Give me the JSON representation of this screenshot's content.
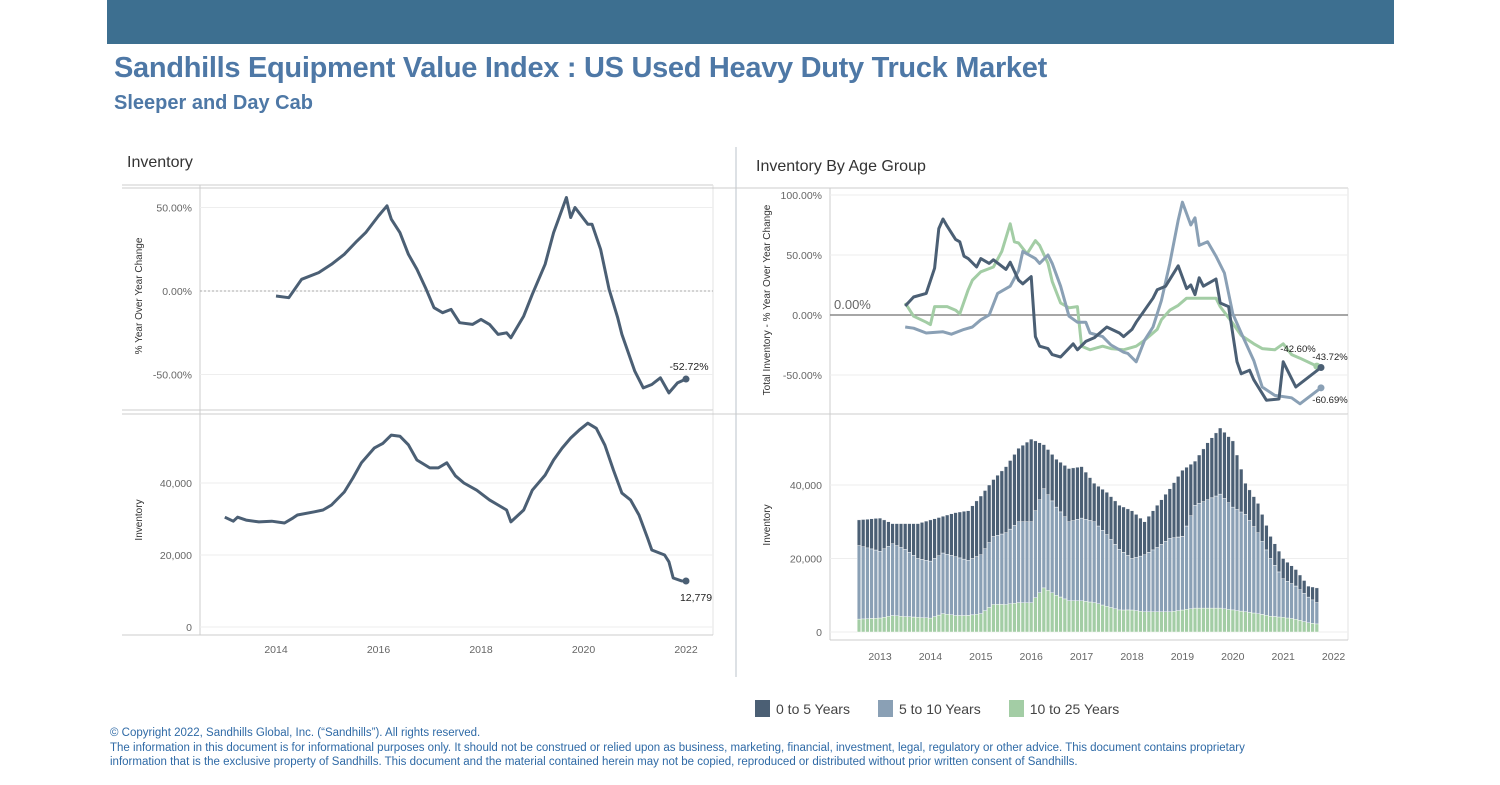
{
  "header": {
    "title": "Sandhills Equipment Value Index : US Used Heavy Duty Truck Market",
    "subtitle": "Sleeper and Day Cab",
    "banner_color": "#3d6f90",
    "title_color": "#4e78a6"
  },
  "legend": {
    "items": [
      {
        "label": "0 to 5 Years",
        "color": "#4b5f74"
      },
      {
        "label": "5 to 10 Years",
        "color": "#8aa0b5"
      },
      {
        "label": "10 to 25 Years",
        "color": "#a3cda5"
      }
    ]
  },
  "footer": {
    "copyright": "© Copyright 2022, Sandhills Global, Inc. (“Sandhills”). All rights reserved.",
    "disclaimer_1": "The information in this document is for informational purposes only.  It should not be construed or relied upon as business, marketing, financial, investment, legal, regulatory or other advice. This document contains proprietary",
    "disclaimer_2": "information that is the exclusive property of Sandhills. This document and the material contained herein may not be copied, reproduced or distributed without prior written consent of Sandhills."
  },
  "panels": {
    "left_title": "Inventory",
    "right_title": "Inventory By Age Group"
  },
  "chart_data": [
    {
      "type": "line",
      "panel": "Inventory",
      "ylabel": "% Year Over Year Change",
      "ylim": [
        -70,
        60
      ],
      "yticks": [
        "50.00%",
        "0.00%",
        "-50.00%"
      ],
      "ytick_values": [
        50,
        0,
        -50
      ],
      "xticks": [
        "2014",
        "2016",
        "2018",
        "2020",
        "2022"
      ],
      "grid": true,
      "color": "#4b5f74",
      "end_label": "-52.72%",
      "x": [
        "2014-01",
        "2014-04",
        "2014-07",
        "2014-11",
        "2015-02",
        "2015-05",
        "2015-08",
        "2015-10",
        "2016-01",
        "2016-03",
        "2016-04",
        "2016-06",
        "2016-08",
        "2016-10",
        "2016-12",
        "2017-02",
        "2017-04",
        "2017-06",
        "2017-08",
        "2017-11",
        "2018-01",
        "2018-03",
        "2018-05",
        "2018-07",
        "2018-08",
        "2018-11",
        "2019-01",
        "2019-04",
        "2019-06",
        "2019-07",
        "2019-09",
        "2019-10",
        "2019-11",
        "2020-02",
        "2020-03",
        "2020-05",
        "2020-07",
        "2020-09",
        "2020-10",
        "2021-01",
        "2021-03",
        "2021-05",
        "2021-07",
        "2021-09",
        "2021-11",
        "2022-01"
      ],
      "y": [
        -3,
        -4,
        7,
        11,
        16,
        22,
        30,
        35,
        45,
        51,
        43,
        35,
        22,
        13,
        2,
        -10,
        -13,
        -11,
        -19,
        -20,
        -17,
        -20,
        -26,
        -25,
        -28,
        -15,
        -2,
        16,
        35,
        42,
        56,
        44,
        50,
        40,
        40,
        25,
        1,
        -16,
        -26,
        -48,
        -58,
        -56,
        -52,
        -61,
        -55,
        -52.72
      ]
    },
    {
      "type": "line",
      "panel": "Inventory",
      "ylabel": "Inventory",
      "ylim": [
        0,
        60000
      ],
      "yticks": [
        "40,000",
        "20,000",
        "0"
      ],
      "ytick_values": [
        40000,
        20000,
        0
      ],
      "xticks": [
        "2014",
        "2016",
        "2018",
        "2020",
        "2022"
      ],
      "grid": true,
      "color": "#4b5f74",
      "end_label": "12,779",
      "x": [
        "2013-01",
        "2013-03",
        "2013-04",
        "2013-06",
        "2013-09",
        "2013-12",
        "2014-03",
        "2014-05",
        "2014-06",
        "2014-10",
        "2014-12",
        "2015-02",
        "2015-05",
        "2015-07",
        "2015-09",
        "2015-12",
        "2016-02",
        "2016-04",
        "2016-06",
        "2016-08",
        "2016-10",
        "2017-01",
        "2017-03",
        "2017-05",
        "2017-07",
        "2017-09",
        "2017-12",
        "2018-03",
        "2018-05",
        "2018-07",
        "2018-08",
        "2018-11",
        "2019-01",
        "2019-04",
        "2019-06",
        "2019-08",
        "2019-10",
        "2019-12",
        "2020-02",
        "2020-04",
        "2020-06",
        "2020-08",
        "2020-10",
        "2020-12",
        "2021-02",
        "2021-04",
        "2021-05",
        "2021-08",
        "2021-09",
        "2021-10",
        "2021-12",
        "2022-01"
      ],
      "y": [
        30500,
        29400,
        30500,
        29700,
        29200,
        29400,
        28900,
        30300,
        31100,
        32000,
        32500,
        33900,
        37500,
        41400,
        45600,
        49700,
        51000,
        53300,
        53000,
        50600,
        46400,
        44200,
        44200,
        45600,
        42000,
        40000,
        38000,
        35300,
        33900,
        32500,
        29200,
        32500,
        38000,
        42200,
        46400,
        49700,
        52500,
        54700,
        56600,
        55200,
        50500,
        43600,
        37200,
        35300,
        31100,
        24700,
        21400,
        20000,
        18100,
        13600,
        12800,
        12779
      ]
    },
    {
      "type": "line",
      "panel": "Inventory By Age Group",
      "ylabel": "Total Inventory - % Year Over Year Change",
      "ylim": [
        -75,
        100
      ],
      "yticks": [
        "100.00%",
        "50.00%",
        "0.00%",
        "-50.00%"
      ],
      "ytick_values": [
        100,
        50,
        0,
        -50
      ],
      "reference_line_label": "0.00%",
      "grid": true,
      "series": [
        {
          "name": "0 to 5 Years",
          "color": "#4b5f74",
          "end_label": "-43.72%",
          "x": [
            "2013-07",
            "2013-09",
            "2013-12",
            "2014-02",
            "2014-03",
            "2014-04",
            "2014-05",
            "2014-07",
            "2014-08",
            "2014-09",
            "2014-10",
            "2014-12",
            "2015-01",
            "2015-03",
            "2015-04",
            "2015-07",
            "2015-08",
            "2015-10",
            "2015-11",
            "2016-01",
            "2016-02",
            "2016-03",
            "2016-05",
            "2016-06",
            "2016-08",
            "2016-11",
            "2016-12",
            "2017-02",
            "2017-04",
            "2017-07",
            "2017-10",
            "2017-11",
            "2018-01",
            "2018-02",
            "2018-04",
            "2018-06",
            "2018-07",
            "2018-09",
            "2018-12",
            "2019-02",
            "2019-03",
            "2019-04",
            "2019-05",
            "2019-06",
            "2019-09",
            "2019-10",
            "2019-12",
            "2020-02",
            "2020-03",
            "2020-05",
            "2020-06",
            "2020-09",
            "2020-12",
            "2021-01",
            "2021-04",
            "2021-10"
          ],
          "y": [
            7.5,
            15,
            18,
            39,
            72,
            80,
            74,
            63,
            61,
            49,
            47,
            40,
            47,
            43,
            46,
            38,
            44,
            29,
            26,
            32,
            -18,
            -26,
            -28,
            -33,
            -35,
            -24,
            -29,
            -22,
            -19,
            -10,
            -15,
            -18,
            -12,
            -6,
            4,
            14,
            21,
            24,
            41,
            22,
            25,
            17,
            31,
            24,
            30,
            10,
            7,
            -39,
            -49,
            -46,
            -54,
            -71,
            -70,
            -39,
            -60,
            -43.72
          ]
        },
        {
          "name": "5 to 10 Years",
          "color": "#8aa0b5",
          "end_label": "-60.69%",
          "x": [
            "2013-07",
            "2013-09",
            "2013-12",
            "2014-04",
            "2014-06",
            "2014-09",
            "2014-11",
            "2015-01",
            "2015-03",
            "2015-05",
            "2015-08",
            "2015-10",
            "2015-11",
            "2016-02",
            "2016-03",
            "2016-05",
            "2016-06",
            "2016-08",
            "2016-10",
            "2016-12",
            "2017-02",
            "2017-03",
            "2017-06",
            "2017-08",
            "2017-11",
            "2017-12",
            "2018-02",
            "2018-04",
            "2018-06",
            "2018-08",
            "2018-10",
            "2018-12",
            "2019-01",
            "2019-03",
            "2019-04",
            "2019-05",
            "2019-07",
            "2019-09",
            "2019-11",
            "2020-01",
            "2020-03",
            "2020-06",
            "2020-08",
            "2020-11",
            "2021-03",
            "2021-05",
            "2021-10"
          ],
          "y": [
            -10,
            -11,
            -15,
            -14,
            -16,
            -12,
            -10,
            -4,
            0,
            18,
            24,
            37,
            53,
            47,
            43,
            50,
            43,
            24,
            -1,
            -6,
            -6,
            -15,
            -18,
            -25,
            -31,
            -32,
            -39,
            -21,
            -10,
            12,
            43,
            79,
            94,
            75,
            81,
            58,
            61,
            49,
            35,
            1,
            -15,
            -38,
            -60,
            -67,
            -69,
            -74,
            -60.69
          ]
        },
        {
          "name": "10 to 25 Years",
          "color": "#a3cda5",
          "end_label": "-42.60%",
          "x": [
            "2013-07",
            "2013-09",
            "2013-12",
            "2014-01",
            "2014-02",
            "2014-05",
            "2014-07",
            "2014-08",
            "2014-10",
            "2014-11",
            "2015-01",
            "2015-04",
            "2015-06",
            "2015-08",
            "2015-09",
            "2015-10",
            "2015-12",
            "2016-02",
            "2016-03",
            "2016-05",
            "2016-06",
            "2016-08",
            "2016-10",
            "2016-12",
            "2017-01",
            "2017-03",
            "2017-06",
            "2017-08",
            "2017-11",
            "2018-02",
            "2018-04",
            "2018-07",
            "2018-08",
            "2018-10",
            "2018-12",
            "2019-02",
            "2019-05",
            "2019-09",
            "2019-10",
            "2020-01",
            "2020-03",
            "2020-06",
            "2020-08",
            "2020-11",
            "2021-01",
            "2021-03",
            "2021-05",
            "2021-09"
          ],
          "y": [
            10,
            -1,
            -6,
            -8,
            7,
            7,
            4,
            1,
            21,
            29,
            36,
            40,
            53,
            76,
            61,
            60,
            51,
            62,
            58,
            43,
            28,
            10,
            6,
            7,
            -26,
            -29,
            -26,
            -28,
            -29,
            -26,
            -21,
            -12,
            -4,
            4,
            8,
            14,
            14,
            14,
            7,
            -7,
            -17,
            -24,
            -28,
            -29,
            -24,
            -33,
            -36,
            -42.6
          ]
        }
      ]
    },
    {
      "type": "bar",
      "stacked": true,
      "panel": "Inventory By Age Group",
      "ylabel": "Inventory",
      "ylim": [
        0,
        60000
      ],
      "yticks": [
        "40,000",
        "20,000",
        "0"
      ],
      "ytick_values": [
        40000,
        20000,
        0
      ],
      "xticks": [
        "2013",
        "2014",
        "2015",
        "2016",
        "2017",
        "2018",
        "2019",
        "2020",
        "2021",
        "2022"
      ],
      "grid": true,
      "legend": "bottom",
      "x": [
        "2012-08",
        "2013-01",
        "2013-04",
        "2013-07",
        "2013-10",
        "2014-01",
        "2014-04",
        "2014-07",
        "2014-10",
        "2015-01",
        "2015-04",
        "2015-07",
        "2015-10",
        "2016-01",
        "2016-04",
        "2016-07",
        "2016-10",
        "2017-01",
        "2017-04",
        "2017-07",
        "2017-10",
        "2018-01",
        "2018-04",
        "2018-07",
        "2018-10",
        "2019-01",
        "2019-04",
        "2019-07",
        "2019-10",
        "2020-01",
        "2020-04",
        "2020-07",
        "2020-10",
        "2021-01",
        "2021-04",
        "2021-07",
        "2021-09"
      ],
      "series": [
        {
          "name": "10 to 25 Years",
          "color": "#a3cda5",
          "values": [
            3500,
            3800,
            4500,
            4200,
            4000,
            3800,
            5000,
            4500,
            4500,
            5000,
            7500,
            7500,
            8000,
            8000,
            12000,
            10000,
            8500,
            8500,
            8000,
            7000,
            6000,
            6000,
            5500,
            5500,
            5500,
            6000,
            6500,
            6500,
            6500,
            6000,
            5500,
            5000,
            4300,
            4000,
            3500,
            2500,
            2200
          ]
        },
        {
          "name": "5 to 10 Years",
          "color": "#8aa0b5",
          "values": [
            20000,
            18200,
            19500,
            18300,
            16000,
            15500,
            16500,
            16000,
            15000,
            16000,
            18500,
            19500,
            22000,
            22000,
            27000,
            24000,
            21500,
            22500,
            22000,
            19500,
            16500,
            14000,
            15500,
            17500,
            20000,
            20000,
            28000,
            29500,
            31000,
            28000,
            26500,
            22000,
            15700,
            10500,
            9000,
            7000,
            5800
          ]
        },
        {
          "name": "0 to 5 Years",
          "color": "#4b5f74",
          "values": [
            7000,
            9000,
            5500,
            7000,
            9500,
            11200,
            10000,
            12000,
            13500,
            16000,
            15500,
            18000,
            20000,
            22500,
            12000,
            13000,
            14500,
            14000,
            10500,
            11500,
            12000,
            13000,
            9000,
            11500,
            13500,
            18000,
            12000,
            15500,
            18000,
            18000,
            8500,
            8000,
            6000,
            5500,
            4500,
            3000,
            4000
          ]
        }
      ]
    }
  ]
}
